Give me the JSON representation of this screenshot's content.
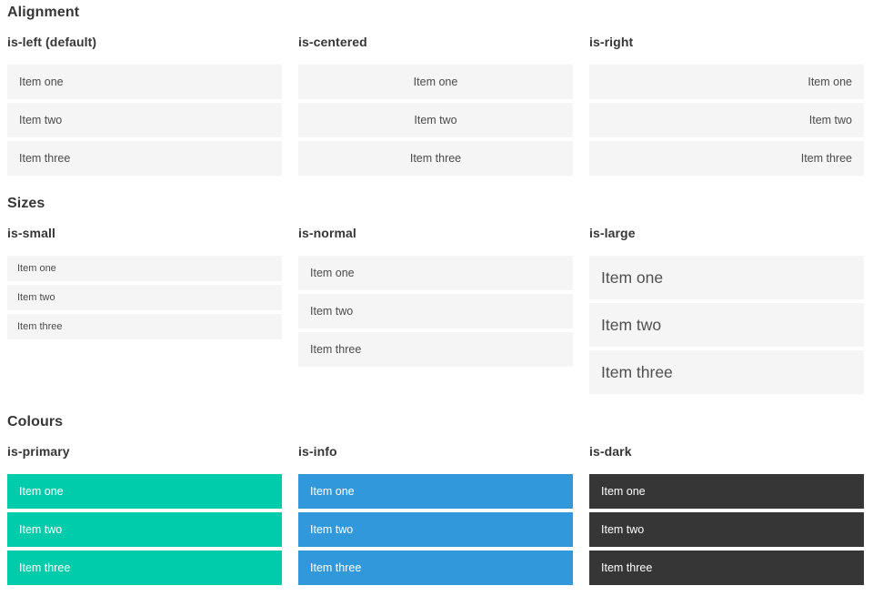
{
  "sections": [
    {
      "title": "Alignment",
      "groups": [
        {
          "label": "is-left (default)",
          "variant": "align-left",
          "items": [
            "Item one",
            "Item two",
            "Item three"
          ]
        },
        {
          "label": "is-centered",
          "variant": "align-center",
          "items": [
            "Item one",
            "Item two",
            "Item three"
          ]
        },
        {
          "label": "is-right",
          "variant": "align-right",
          "items": [
            "Item one",
            "Item two",
            "Item three"
          ]
        }
      ]
    },
    {
      "title": "Sizes",
      "groups": [
        {
          "label": "is-small",
          "variant": "size-small",
          "items": [
            "Item one",
            "Item two",
            "Item three"
          ]
        },
        {
          "label": "is-normal",
          "variant": "size-normal",
          "items": [
            "Item one",
            "Item two",
            "Item three"
          ]
        },
        {
          "label": "is-large",
          "variant": "size-large",
          "items": [
            "Item one",
            "Item two",
            "Item three"
          ]
        }
      ]
    },
    {
      "title": "Colours",
      "groups": [
        {
          "label": "is-primary",
          "variant": "color-primary",
          "items": [
            "Item one",
            "Item two",
            "Item three"
          ]
        },
        {
          "label": "is-info",
          "variant": "color-info",
          "items": [
            "Item one",
            "Item two",
            "Item three"
          ]
        },
        {
          "label": "is-dark",
          "variant": "color-dark",
          "items": [
            "Item one",
            "Item two",
            "Item three"
          ]
        }
      ]
    }
  ],
  "colors": {
    "primary": "#00cbaa",
    "info": "#3298dc",
    "dark": "#363636",
    "item_background": "#f5f5f5",
    "item_text": "#4a4a4a",
    "heading_text": "#363636",
    "colored_item_text": "#ffffff"
  }
}
